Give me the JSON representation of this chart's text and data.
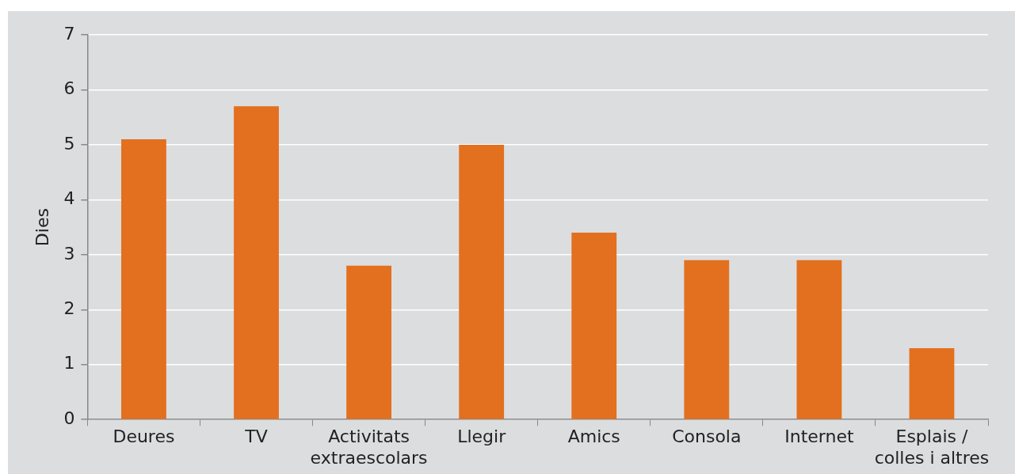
{
  "chart_data": {
    "type": "bar",
    "ylabel": "Dies",
    "categories": [
      "Deures",
      "TV",
      "Activitats extraescolars",
      "Llegir",
      "Amics",
      "Consola",
      "Internet",
      "Esplais / colles i altres"
    ],
    "values": [
      5.1,
      5.7,
      2.8,
      5.0,
      3.4,
      2.9,
      2.9,
      1.3
    ],
    "color": "#e3701e",
    "ylim": [
      0,
      7
    ],
    "yticks": [
      0,
      1,
      2,
      3,
      4,
      5,
      6,
      7
    ],
    "grid": "y",
    "legend": false
  }
}
